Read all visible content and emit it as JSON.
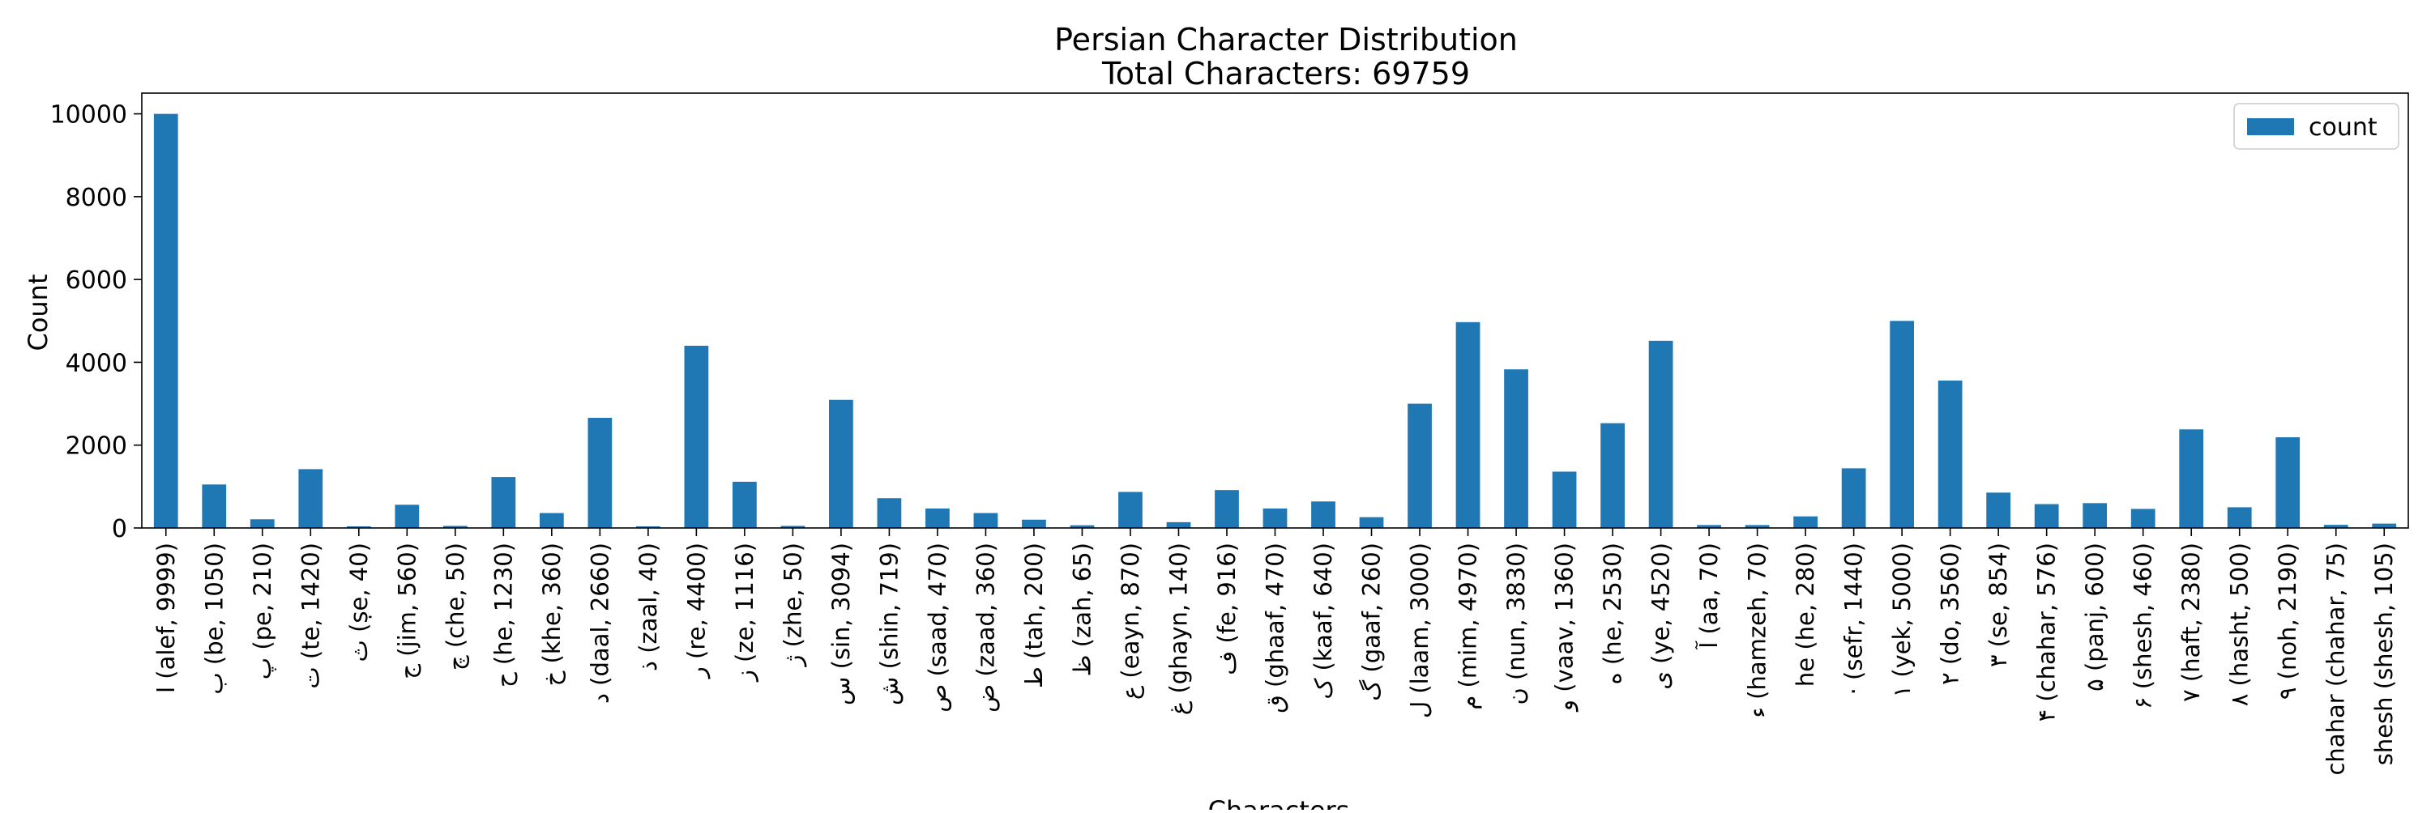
{
  "chart_data": {
    "type": "bar",
    "title": "Persian Character Distribution",
    "subtitle": "Total Characters: 69759",
    "xlabel": "Characters",
    "ylabel": "Count",
    "ylim": [
      0,
      10500
    ],
    "yticks": [
      0,
      2000,
      4000,
      6000,
      8000,
      10000
    ],
    "grid": false,
    "legend_position": "top-right",
    "bar_color": "#1f77b4",
    "categories": [
      "ا (alef, 9999)",
      "ب (be, 1050)",
      "پ (pe, 210)",
      "ت (te, 1420)",
      "ث (ṣe, 40)",
      "ج (jim, 560)",
      "چ (che, 50)",
      "ح (he, 1230)",
      "خ (khe, 360)",
      "د (daal, 2660)",
      "ذ (zaal, 40)",
      "ر (re, 4400)",
      "ز (ze, 1116)",
      "ژ (zhe, 50)",
      "س (sin, 3094)",
      "ش (shin, 719)",
      "ص (saad, 470)",
      "ض (zaad, 360)",
      "ط (tah, 200)",
      "ظ (zah, 65)",
      "ع (eayn, 870)",
      "غ (ghayn, 140)",
      "ف (fe, 916)",
      "ق (ghaaf, 470)",
      "ک (kaaf, 640)",
      "گ (gaaf, 260)",
      "ل (laam, 3000)",
      "م (mim, 4970)",
      "ن (nun, 3830)",
      "و (vaav, 1360)",
      "ه (he, 2530)",
      "ی (ye, 4520)",
      "آ (aa, 70)",
      "ء (hamzeh, 70)",
      "he (he, 280)",
      "· (sefr, 1440)",
      "١ (yek, 5000)",
      "٢ (do, 3560)",
      "٣ (se, 854)",
      "۴ (chahar, 576)",
      "۵ (panj, 600)",
      "۶ (shesh, 460)",
      "٧ (haft, 2380)",
      "٨ (hasht, 500)",
      "٩ (noh, 2190)",
      "chahar (chahar, 75)",
      "shesh (shesh, 105)"
    ],
    "series": [
      {
        "name": "count",
        "values": [
          9999,
          1050,
          210,
          1420,
          40,
          560,
          50,
          1230,
          360,
          2660,
          40,
          4400,
          1116,
          50,
          3094,
          719,
          470,
          360,
          200,
          65,
          870,
          140,
          916,
          470,
          640,
          260,
          3000,
          4970,
          3830,
          1360,
          2530,
          4520,
          70,
          70,
          280,
          1440,
          5000,
          3560,
          854,
          576,
          600,
          460,
          2380,
          500,
          2190,
          75,
          105
        ]
      }
    ]
  }
}
